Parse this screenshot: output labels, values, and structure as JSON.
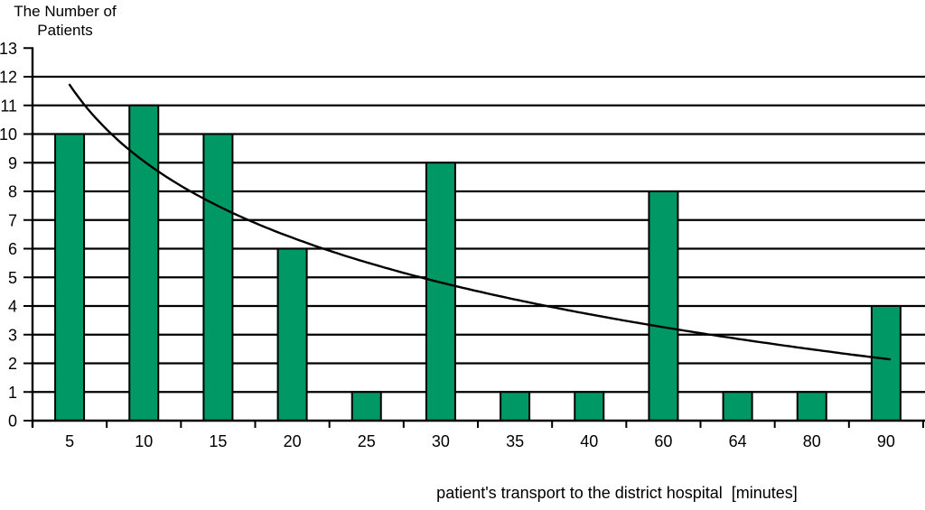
{
  "title": {
    "line1": "The Number of",
    "line2": "Patients"
  },
  "x_axis_label": "patient's transport to the district hospital  [minutes]",
  "colors": {
    "bar_fill": "#009966",
    "bar_border": "#000000",
    "grid": "#000000",
    "axis": "#000000",
    "trendline": "#000000",
    "background": "#ffffff",
    "text": "#000000"
  },
  "chart_data": {
    "type": "bar",
    "title": "The Number of Patients",
    "ylabel": "The Number of Patients",
    "xlabel": "patient's transport to the district hospital  [minutes]",
    "categories": [
      "5",
      "10",
      "15",
      "20",
      "25",
      "30",
      "35",
      "40",
      "60",
      "64",
      "80",
      "90"
    ],
    "values": [
      10,
      11,
      10,
      6,
      1,
      9,
      1,
      1,
      8,
      1,
      1,
      4
    ],
    "ylim": [
      0,
      13
    ],
    "y_ticks": [
      0,
      1,
      2,
      3,
      4,
      5,
      6,
      7,
      8,
      9,
      10,
      11,
      12,
      13
    ],
    "grid": "horizontal",
    "legend": "none",
    "trendline": {
      "type": "logarithmic",
      "a": 11.72,
      "b": 3.85,
      "values_at_categories": [
        11.72,
        9.05,
        7.49,
        6.38,
        5.52,
        4.82,
        4.23,
        3.71,
        3.26,
        2.86,
        2.49,
        2.15
      ]
    }
  }
}
